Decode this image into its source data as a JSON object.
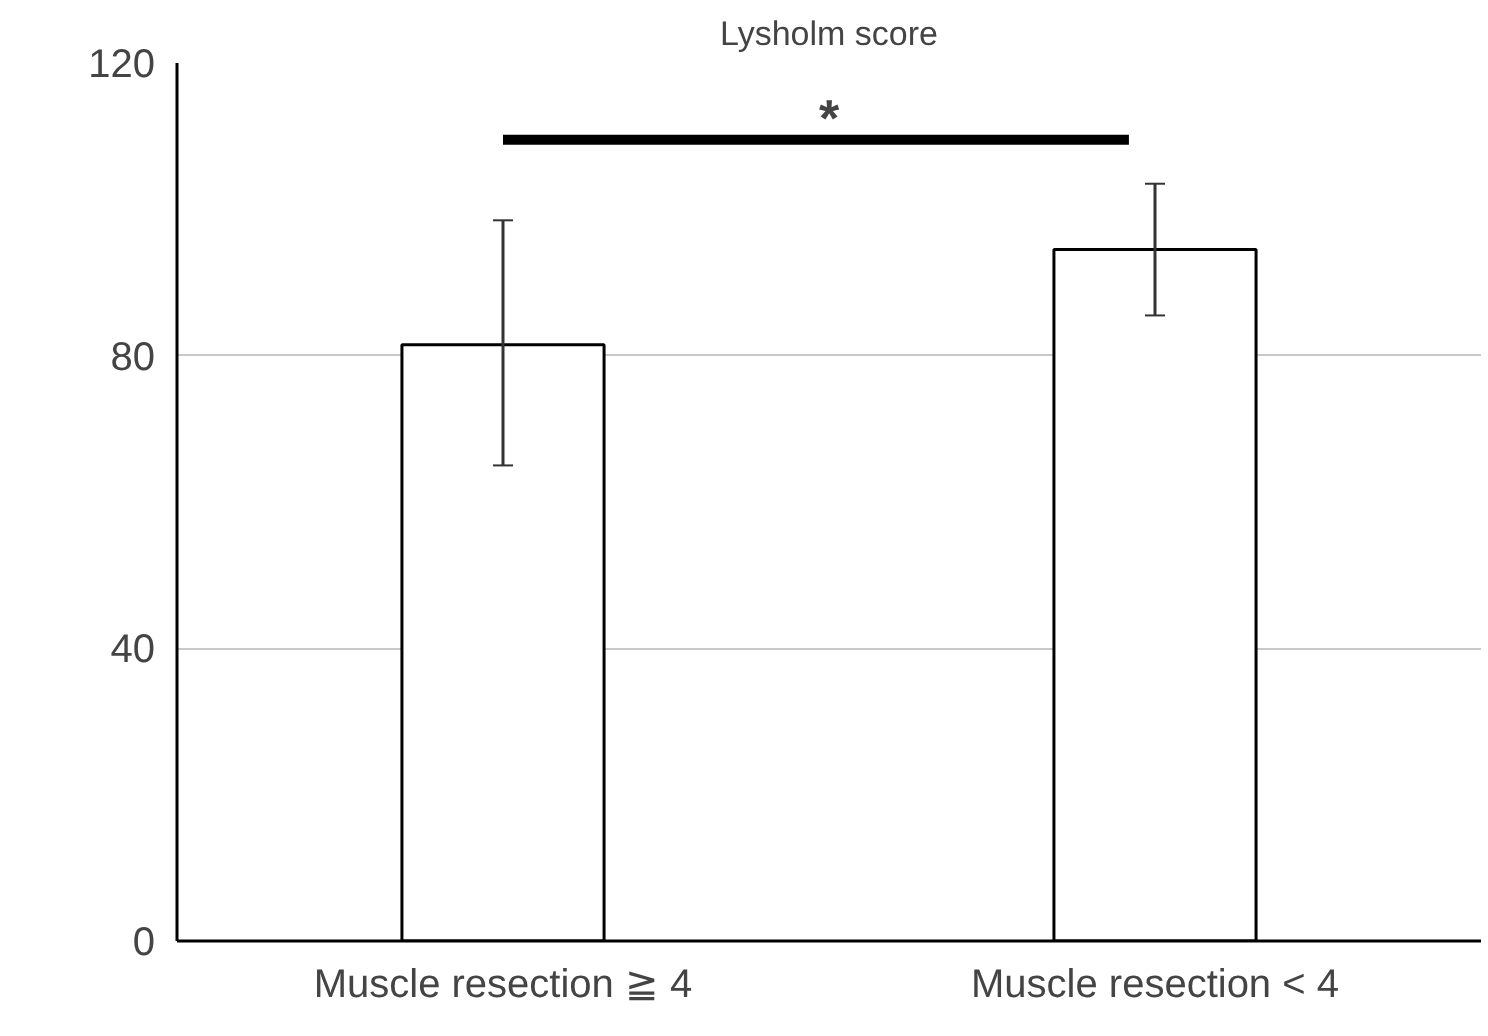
{
  "chart_data": {
    "type": "bar",
    "title": "Lysholm score",
    "categories": [
      "Muscle resection ≧ 4",
      "Muscle resection < 4"
    ],
    "values": [
      81.5,
      94.5
    ],
    "errors": [
      [
        65,
        98.5
      ],
      [
        85.5,
        103.5
      ]
    ],
    "color": "#ffffff",
    "ylim": [
      0,
      120
    ],
    "yticks": [
      0,
      40,
      80,
      120
    ],
    "grid": "y",
    "annotations": [
      "*"
    ]
  }
}
